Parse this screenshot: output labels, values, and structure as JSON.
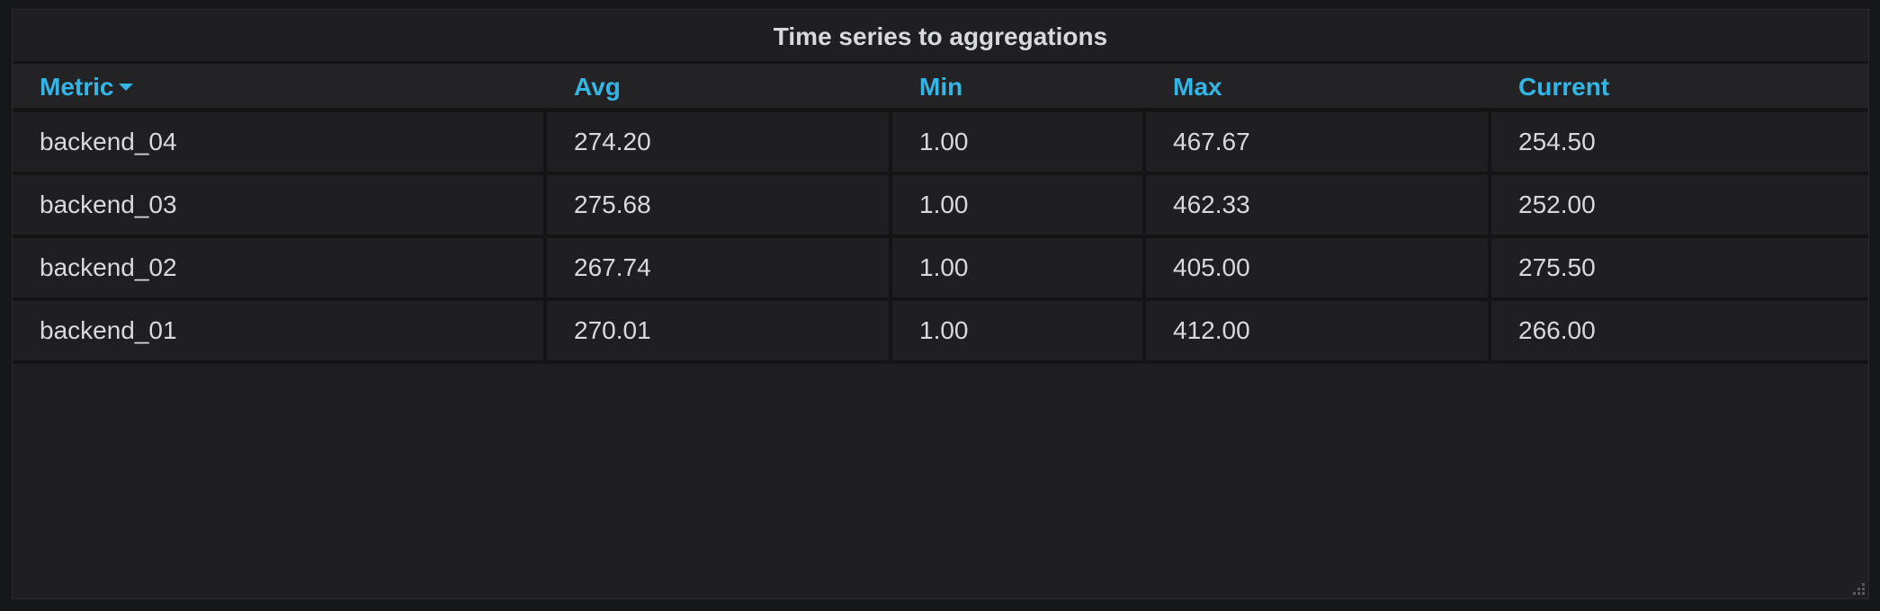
{
  "panel": {
    "title": "Time series to aggregations"
  },
  "table": {
    "columns": [
      "Metric",
      "Avg",
      "Min",
      "Max",
      "Current"
    ],
    "sort_column": "Metric",
    "sort_direction": "desc",
    "rows": [
      [
        "backend_04",
        "274.20",
        "1.00",
        "467.67",
        "254.50"
      ],
      [
        "backend_03",
        "275.68",
        "1.00",
        "462.33",
        "252.00"
      ],
      [
        "backend_02",
        "267.74",
        "1.00",
        "405.00",
        "275.50"
      ],
      [
        "backend_01",
        "270.01",
        "1.00",
        "412.00",
        "266.00"
      ]
    ]
  },
  "colors": {
    "header_text": "#33b5e5",
    "cell_text": "#d8d9da",
    "panel_bg": "#1f1e20",
    "page_bg": "#161719"
  },
  "icons": {
    "sort": "caret-down-icon",
    "resize": "resize-handle-icon"
  }
}
